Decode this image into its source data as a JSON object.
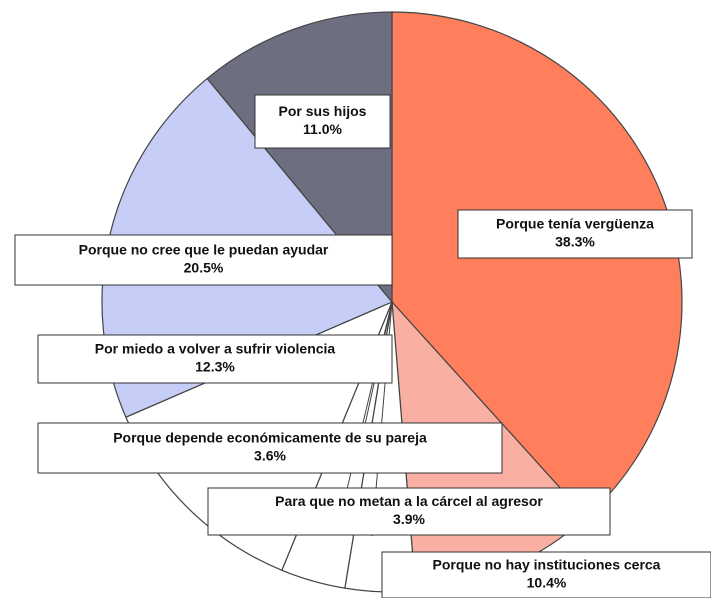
{
  "chart_data": {
    "type": "pie",
    "categories": [
      "Porque tenía vergüenza",
      "Porque no hay instituciones cerca",
      "Para que no metan a la cárcel al agresor",
      "Porque depende económicamente de su pareja",
      "Por miedo a volver a sufrir violencia",
      "Porque no cree que le puedan ayudar",
      "Por sus hijos"
    ],
    "values": [
      38.3,
      10.4,
      3.9,
      3.6,
      12.3,
      20.5,
      11.0
    ],
    "value_labels": [
      "38.3%",
      "10.4%",
      "3.9%",
      "3.6%",
      "12.3%",
      "20.5%",
      "11.0%"
    ],
    "colors": [
      "#ff7f5c",
      "#f9b0a2",
      "#ffffff",
      "#ffffff",
      "#ffffff",
      "#c6cdf6",
      "#6d6e80"
    ]
  }
}
